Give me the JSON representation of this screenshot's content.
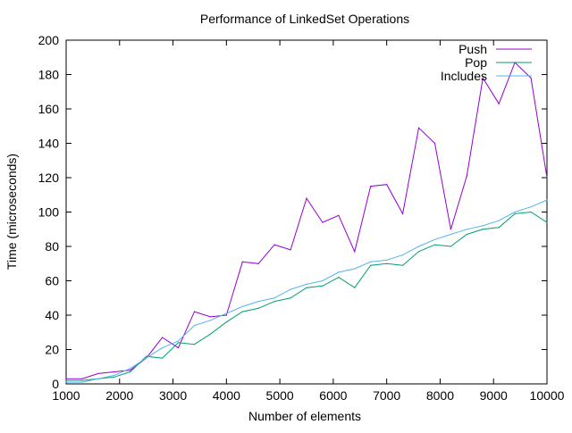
{
  "chart_data": {
    "type": "line",
    "title": "Performance of LinkedSet Operations",
    "xlabel": "Number of elements",
    "ylabel": "Time (microseconds)",
    "xlim": [
      1000,
      10000
    ],
    "ylim": [
      0,
      200
    ],
    "xticks": [
      1000,
      2000,
      3000,
      4000,
      5000,
      6000,
      7000,
      8000,
      9000,
      10000
    ],
    "yticks": [
      0,
      20,
      40,
      60,
      80,
      100,
      120,
      140,
      160,
      180,
      200
    ],
    "grid": false,
    "legend_position": "top-right",
    "x": [
      1000,
      1300,
      1600,
      1900,
      2200,
      2500,
      2800,
      3100,
      3400,
      3700,
      4000,
      4300,
      4600,
      4900,
      5200,
      5500,
      5800,
      6100,
      6400,
      6700,
      7000,
      7300,
      7600,
      7900,
      8200,
      8500,
      8800,
      9100,
      9400,
      9700,
      10000
    ],
    "series": [
      {
        "name": "Push",
        "color": "#9400d3",
        "values": [
          3,
          3,
          6,
          7,
          8,
          15,
          27,
          21,
          42,
          39,
          40,
          71,
          70,
          81,
          78,
          108,
          94,
          98,
          77,
          115,
          116,
          99,
          149,
          140,
          90,
          121,
          178,
          163,
          187,
          178,
          120
        ]
      },
      {
        "name": "Pop",
        "color": "#009e73",
        "values": [
          2,
          2,
          3,
          4,
          7,
          16,
          15,
          24,
          23,
          29,
          36,
          42,
          44,
          48,
          50,
          56,
          57,
          62,
          56,
          69,
          70,
          69,
          77,
          81,
          80,
          87,
          90,
          91,
          99,
          100,
          94
        ]
      },
      {
        "name": "Includes",
        "color": "#56b4e9",
        "values": [
          1,
          1,
          3,
          5,
          9,
          15,
          21,
          25,
          34,
          37,
          41,
          45,
          48,
          50,
          55,
          58,
          60,
          65,
          67,
          71,
          72,
          75,
          80,
          84,
          87,
          90,
          92,
          95,
          100,
          103,
          107
        ]
      }
    ]
  }
}
